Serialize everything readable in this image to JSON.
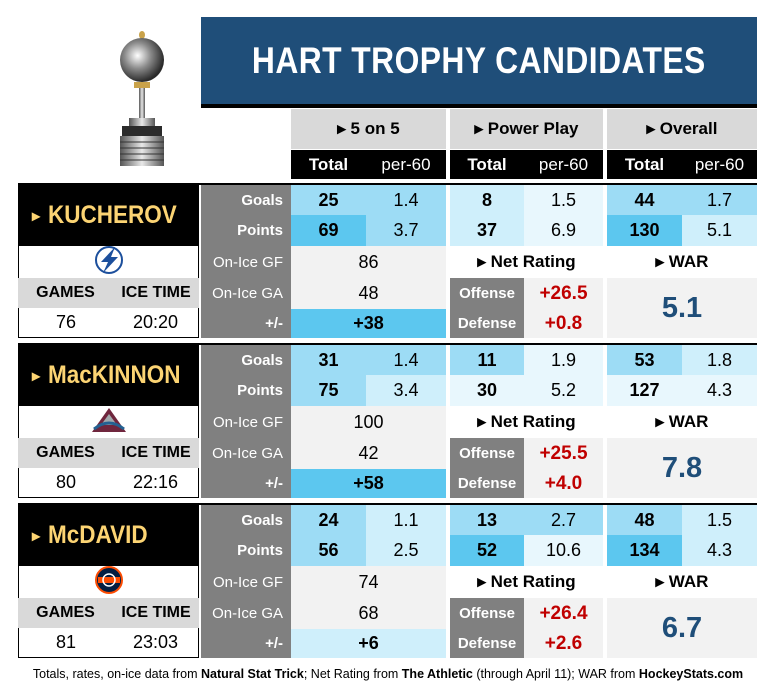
{
  "title": "HART TROPHY CANDIDATES",
  "headers": {
    "five_on_five": "▸ 5 on 5",
    "power_play": "▸ Power Play",
    "overall": "▸ Overall",
    "total": "Total",
    "per60": "per-60"
  },
  "labels": {
    "goals": "Goals",
    "points": "Points",
    "on_ice_gf": "On-Ice GF",
    "on_ice_ga": "On-Ice GA",
    "plus_minus": "+/-",
    "net_rating": "▸ Net Rating",
    "war": "▸ WAR",
    "offense": "Offense",
    "defense": "Defense",
    "games": "GAMES",
    "ice_time": "ICE TIME",
    "arrow": "▸"
  },
  "players": [
    {
      "name": "KUCHEROV",
      "team_icon": "lightning-logo",
      "games": "76",
      "ice_time": "20:20",
      "goals_5v5_total": "25",
      "goals_5v5_per60": "1.4",
      "points_5v5_total": "69",
      "points_5v5_per60": "3.7",
      "goals_pp_total": "8",
      "goals_pp_per60": "1.5",
      "points_pp_total": "37",
      "points_pp_per60": "6.9",
      "goals_all_total": "44",
      "goals_all_per60": "1.7",
      "points_all_total": "130",
      "points_all_per60": "5.1",
      "on_ice_gf": "86",
      "on_ice_ga": "48",
      "plus_minus": "+38",
      "offense": "+26.5",
      "defense": "+0.8",
      "war": "5.1"
    },
    {
      "name": "MacKINNON",
      "team_icon": "avalanche-logo",
      "games": "80",
      "ice_time": "22:16",
      "goals_5v5_total": "31",
      "goals_5v5_per60": "1.4",
      "points_5v5_total": "75",
      "points_5v5_per60": "3.4",
      "goals_pp_total": "11",
      "goals_pp_per60": "1.9",
      "points_pp_total": "30",
      "points_pp_per60": "5.2",
      "goals_all_total": "53",
      "goals_all_per60": "1.8",
      "points_all_total": "127",
      "points_all_per60": "4.3",
      "on_ice_gf": "100",
      "on_ice_ga": "42",
      "plus_minus": "+58",
      "offense": "+25.5",
      "defense": "+4.0",
      "war": "7.8"
    },
    {
      "name": "McDAVID",
      "team_icon": "oilers-logo",
      "games": "81",
      "ice_time": "23:03",
      "goals_5v5_total": "24",
      "goals_5v5_per60": "1.1",
      "points_5v5_total": "56",
      "points_5v5_per60": "2.5",
      "goals_pp_total": "13",
      "goals_pp_per60": "2.7",
      "points_pp_total": "52",
      "points_pp_per60": "10.6",
      "goals_all_total": "48",
      "goals_all_per60": "1.5",
      "points_all_total": "134",
      "points_all_per60": "4.3",
      "on_ice_gf": "74",
      "on_ice_ga": "68",
      "plus_minus": "+6",
      "offense": "+26.4",
      "defense": "+2.6",
      "war": "6.7"
    }
  ],
  "footer": {
    "p1": "Totals, rates, on-ice data from ",
    "s1": "Natural Stat Trick",
    "p2": "; Net Rating from ",
    "s2": "The Athletic",
    "p3": " (through April 11); WAR from ",
    "s3": "HockeyStats.com"
  },
  "colors": {
    "title_bg": "#1f4e79",
    "name_text": "#fcd473",
    "negative_red": "#c00000",
    "blue_dark": "#5cc7ef",
    "blue_mid": "#9ddcf5",
    "blue_light": "#cfeffb"
  }
}
